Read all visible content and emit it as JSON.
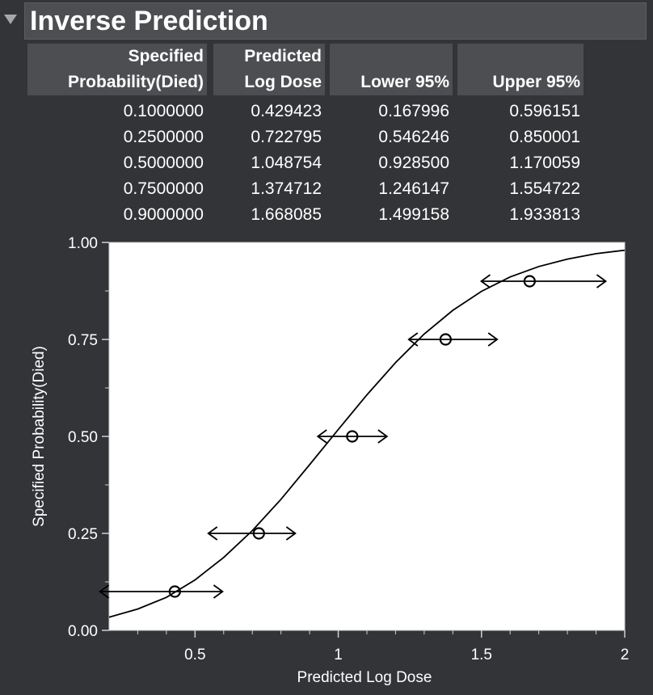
{
  "outline": {
    "title": "Inverse Prediction"
  },
  "table": {
    "headers": [
      {
        "line1": "Specified",
        "line2": "Probability(Died)"
      },
      {
        "line1": "Predicted",
        "line2": "Log Dose"
      },
      {
        "line1": "",
        "line2": "Lower 95%"
      },
      {
        "line1": "",
        "line2": "Upper 95%"
      }
    ],
    "rows": [
      [
        "0.1000000",
        "0.429423",
        "0.167996",
        "0.596151"
      ],
      [
        "0.2500000",
        "0.722795",
        "0.546246",
        "0.850001"
      ],
      [
        "0.5000000",
        "1.048754",
        "0.928500",
        "1.170059"
      ],
      [
        "0.7500000",
        "1.374712",
        "1.246147",
        "1.554722"
      ],
      [
        "0.9000000",
        "1.668085",
        "1.499158",
        "1.933813"
      ]
    ]
  },
  "chart_data": {
    "type": "scatter",
    "xlabel": "Predicted Log Dose",
    "ylabel": "Specified Probability(Died)",
    "xlim": [
      0.2,
      2.0
    ],
    "ylim": [
      0.0,
      1.0
    ],
    "x_ticks": [
      "0.5",
      "1",
      "1.5",
      "2"
    ],
    "x_tick_values": [
      0.5,
      1.0,
      1.5,
      2.0
    ],
    "y_ticks": [
      "0.00",
      "0.25",
      "0.50",
      "0.75",
      "1.00"
    ],
    "y_tick_values": [
      0.0,
      0.25,
      0.5,
      0.75,
      1.0
    ],
    "points": [
      {
        "x": 0.429423,
        "y": 0.1,
        "lower": 0.167996,
        "upper": 0.596151
      },
      {
        "x": 0.722795,
        "y": 0.25,
        "lower": 0.546246,
        "upper": 0.850001
      },
      {
        "x": 1.048754,
        "y": 0.5,
        "lower": 0.9285,
        "upper": 1.170059
      },
      {
        "x": 1.374712,
        "y": 0.75,
        "lower": 1.246147,
        "upper": 1.554722
      },
      {
        "x": 1.668085,
        "y": 0.9,
        "lower": 1.499158,
        "upper": 1.933813
      }
    ],
    "curve": {
      "x": [
        0.2,
        0.3,
        0.4,
        0.5,
        0.6,
        0.7,
        0.8,
        0.9,
        1.0,
        1.1,
        1.2,
        1.3,
        1.4,
        1.5,
        1.6,
        1.7,
        1.8,
        1.9,
        2.0
      ],
      "y": [
        0.034,
        0.055,
        0.085,
        0.13,
        0.188,
        0.257,
        0.338,
        0.427,
        0.518,
        0.607,
        0.69,
        0.764,
        0.825,
        0.874,
        0.911,
        0.938,
        0.957,
        0.971,
        0.98
      ]
    },
    "grid": false,
    "legend": "none"
  }
}
